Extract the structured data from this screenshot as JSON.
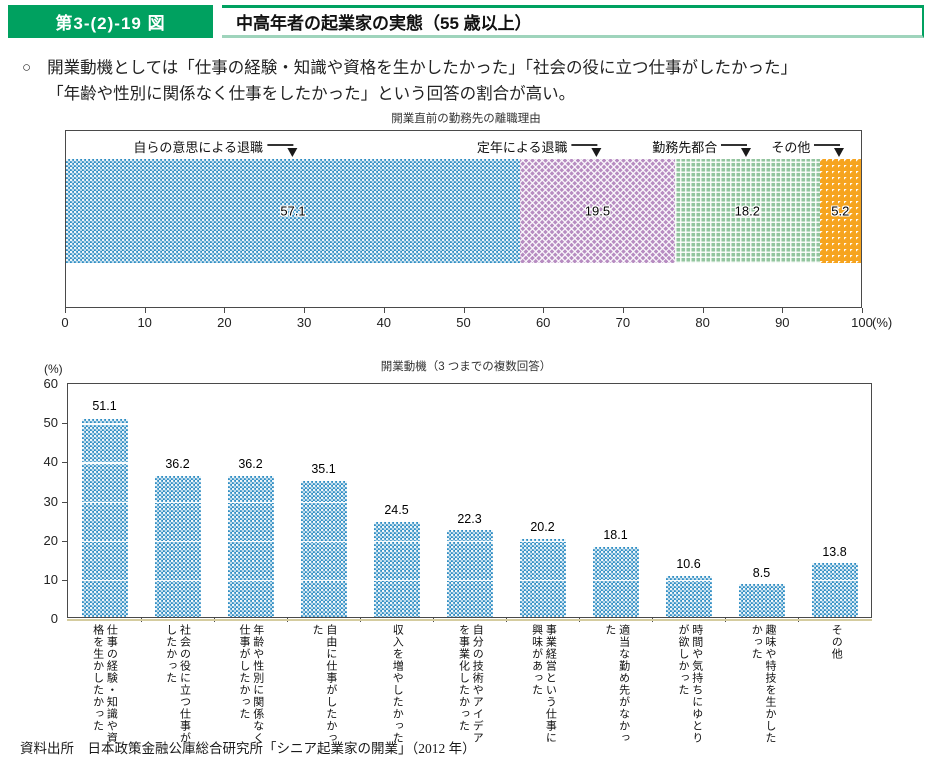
{
  "header": {
    "badge": "第3-(2)-19 図",
    "title": "中高年者の起業家の実態（55 歳以上）"
  },
  "lead": {
    "bullet": "○",
    "line1": "開業動機としては「仕事の経験・知識や資格を生かしたかった」「社会の役に立つ仕事がしたかった」",
    "line2": "「年齢や性別に関係なく仕事をしたかった」という回答の割合が高い。"
  },
  "source": "資料出所　日本政策金融公庫総合研究所「シニア起業家の開業」（2012 年）",
  "colors": {
    "accent_green": "#00a160",
    "accent_green_light": "#9fd4bc",
    "bar_blue": "#2e8dc3",
    "seg_purple": "#b78cc1",
    "seg_green": "#92c59e",
    "seg_orange": "#f6a41f",
    "frame": "#4a4a4a",
    "tan_underline": "#d5cc9f"
  },
  "chart_data": [
    {
      "type": "bar",
      "subtype": "horizontal-stacked",
      "title": "開業直前の勤務先の離職理由",
      "unit": "(%)",
      "xlim": [
        0,
        100
      ],
      "x_ticks": [
        0,
        10,
        20,
        30,
        40,
        50,
        60,
        70,
        80,
        90,
        100
      ],
      "segments": [
        {
          "label": "自らの意思による退職",
          "value": 57.1,
          "color": "#2e8dc3",
          "pattern": "dots"
        },
        {
          "label": "定年による退職",
          "value": 19.5,
          "color": "#b78cc1",
          "pattern": "cross"
        },
        {
          "label": "勤務先都合",
          "value": 18.2,
          "color": "#92c59e",
          "pattern": "grid"
        },
        {
          "label": "その他",
          "value": 5.2,
          "color": "#f6a41f",
          "pattern": "tri"
        }
      ]
    },
    {
      "type": "bar",
      "subtype": "vertical",
      "title": "開業動機（3 つまでの複数回答）",
      "unit": "(%)",
      "ylim": [
        0,
        60
      ],
      "y_ticks": [
        0,
        10,
        20,
        30,
        40,
        50,
        60
      ],
      "grid_lines": [
        10,
        20,
        30,
        40,
        50
      ],
      "bar_color": "#2e8dc3",
      "bar_pattern": "dots",
      "categories": [
        "仕事の経験・知識や資格を生かしたかった",
        "社会の役に立つ仕事がしたかった",
        "年齢や性別に関係なく仕事がしたかった",
        "自由に仕事がしたかった",
        "収入を増やしたかった",
        "自分の技術やアイデアを事業化したかった",
        "事業経営という仕事に興味があった",
        "適当な勤め先がなかった",
        "時間や気持ちにゆとりが欲しかった",
        "趣味や特技を生かしたかった",
        "その他"
      ],
      "values": [
        51.1,
        36.2,
        36.2,
        35.1,
        24.5,
        22.3,
        20.2,
        18.1,
        10.6,
        8.5,
        13.8
      ]
    }
  ]
}
